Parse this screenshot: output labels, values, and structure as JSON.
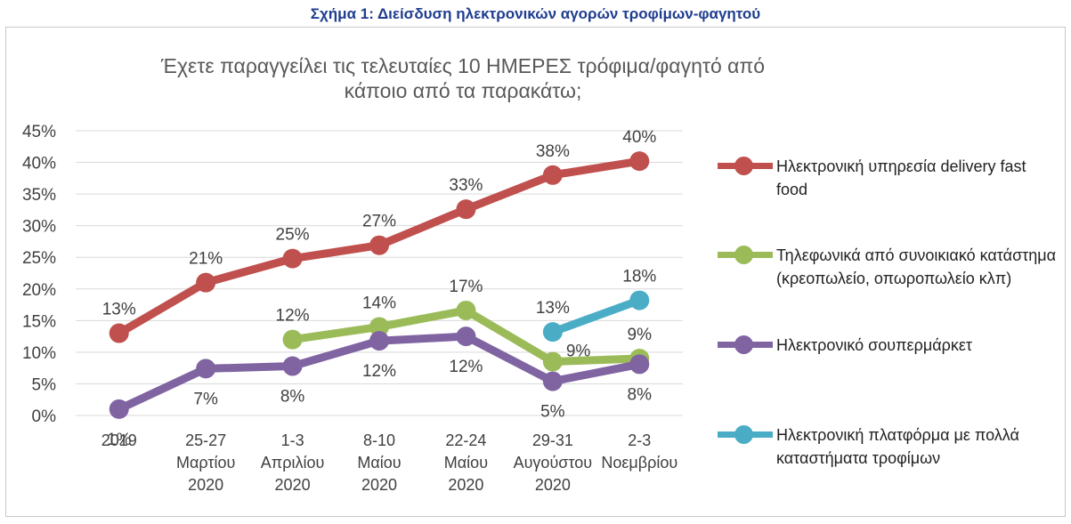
{
  "caption": "Σχήμα 1: Διείσδυση ηλεκτρονικών αγορών τροφίμων-φαγητού",
  "chart_data": {
    "type": "line",
    "title": "Έχετε παραγγείλει τις τελευταίες 10 ΗΜΕΡΕΣ τρόφιμα/φαγητό από κάποιο από τα παρακάτω;",
    "categories": [
      [
        "2019"
      ],
      [
        "25-27",
        "Μαρτίου",
        "2020"
      ],
      [
        "1-3",
        "Απριλίου",
        "2020"
      ],
      [
        "8-10",
        "Μαίου",
        "2020"
      ],
      [
        "22-24",
        "Μαίου",
        "2020"
      ],
      [
        "29-31",
        "Αυγούστου",
        "2020"
      ],
      [
        "2-3",
        "Νοεμβρίου"
      ]
    ],
    "ylim": [
      0,
      45
    ],
    "y_ticks": [
      "0%",
      "5%",
      "10%",
      "15%",
      "20%",
      "25%",
      "30%",
      "35%",
      "40%",
      "45%"
    ],
    "grid": true,
    "legend_position": "right",
    "series": [
      {
        "name": "Ηλεκτρονική υπηρεσία delivery fast food",
        "color": "#c0504d",
        "values": [
          13,
          21,
          24.8,
          26.9,
          32.6,
          38,
          40.2
        ],
        "labels": [
          "13%",
          "21%",
          "25%",
          "27%",
          "33%",
          "38%",
          "40%"
        ]
      },
      {
        "name": "Τηλεφωνικά από συνοικιακό κατάστημα (κρεοπωλείο, οπωροπωλείο κλπ)",
        "color": "#9bbb59",
        "values": [
          null,
          null,
          12,
          14,
          16.6,
          8.5,
          9
        ],
        "labels": [
          "",
          "",
          "12%",
          "14%",
          "17%",
          "9%",
          "9%"
        ]
      },
      {
        "name": "Ηλεκτρονικό σουπερμάρκετ",
        "color": "#8064a2",
        "values": [
          1,
          7.4,
          7.8,
          11.8,
          12.5,
          5.4,
          8.1
        ],
        "labels": [
          "1%",
          "7%",
          "8%",
          "12%",
          "12%",
          "5%",
          "8%"
        ]
      },
      {
        "name": "Ηλεκτρονική πλατφόρμα με πολλά καταστήματα τροφίμων",
        "color": "#4bacc6",
        "values": [
          null,
          null,
          null,
          null,
          null,
          13.2,
          18.2
        ],
        "labels": [
          "",
          "",
          "",
          "",
          "",
          "13%",
          "18%"
        ]
      }
    ]
  }
}
